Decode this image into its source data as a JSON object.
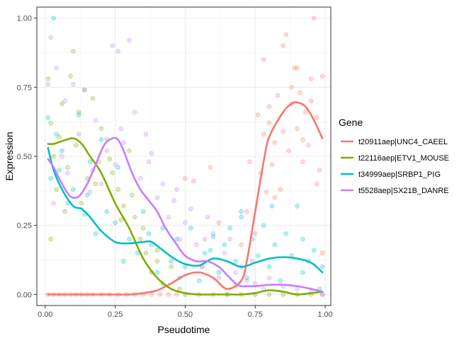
{
  "chart_data": {
    "type": "scatter",
    "title": "",
    "xlabel": "Pseudotime",
    "ylabel": "Expression",
    "xlim": [
      -0.03,
      1.02
    ],
    "ylim": [
      -0.04,
      1.04
    ],
    "x_ticks": [
      0.0,
      0.25,
      0.5,
      0.75,
      1.0
    ],
    "x_tick_labels": [
      "0.00",
      "0.25",
      "0.50",
      "0.75",
      "1.00"
    ],
    "y_ticks": [
      0.0,
      0.25,
      0.5,
      0.75,
      1.0
    ],
    "y_tick_labels": [
      "0.00",
      "0.25",
      "0.50",
      "0.75",
      "1.00"
    ],
    "grid": true,
    "legend": {
      "title": "Gene",
      "position": "right",
      "entries": [
        "t20911aep|UNC4_CAEEL",
        "t22116aep|ETV1_MOUSE",
        "t34999aep|SRBP1_PIG",
        "t5528aep|SX21B_DANRE"
      ]
    },
    "series": [
      {
        "name": "t20911aep|UNC4_CAEEL",
        "color": "#F8766D",
        "curve": {
          "x": [
            0.01,
            0.05,
            0.1,
            0.15,
            0.2,
            0.25,
            0.3,
            0.35,
            0.4,
            0.45,
            0.5,
            0.55,
            0.6,
            0.65,
            0.7,
            0.72,
            0.75,
            0.78,
            0.8,
            0.85,
            0.88,
            0.9,
            0.93,
            0.96,
            0.99
          ],
          "y": [
            0.0,
            0.0,
            0.0,
            0.0,
            0.0,
            0.0,
            0.0,
            0.005,
            0.015,
            0.04,
            0.07,
            0.08,
            0.06,
            0.02,
            0.05,
            0.12,
            0.3,
            0.48,
            0.57,
            0.66,
            0.69,
            0.695,
            0.68,
            0.63,
            0.565
          ]
        },
        "points": {
          "x": [
            0.01,
            0.03,
            0.05,
            0.07,
            0.09,
            0.11,
            0.13,
            0.15,
            0.17,
            0.2,
            0.23,
            0.26,
            0.29,
            0.32,
            0.35,
            0.38,
            0.41,
            0.44,
            0.47,
            0.5,
            0.53,
            0.56,
            0.59,
            0.62,
            0.65,
            0.68,
            0.7,
            0.72,
            0.73,
            0.74,
            0.76,
            0.77,
            0.78,
            0.79,
            0.8,
            0.81,
            0.82,
            0.83,
            0.84,
            0.85,
            0.86,
            0.87,
            0.88,
            0.89,
            0.9,
            0.91,
            0.92,
            0.93,
            0.94,
            0.95,
            0.96,
            0.97,
            0.98,
            0.99,
            0.75,
            0.8,
            0.85,
            0.9,
            0.95,
            0.99,
            0.97,
            0.92,
            0.88,
            0.82,
            0.78
          ],
          "y": [
            0.0,
            0.0,
            0.0,
            0.0,
            0.0,
            0.0,
            0.0,
            0.0,
            0.0,
            0.0,
            0.0,
            0.0,
            0.0,
            0.0,
            0.0,
            0.0,
            0.0,
            0.0,
            0.0,
            0.42,
            0.41,
            0.1,
            0.46,
            0.26,
            0.0,
            0.03,
            0.18,
            0.3,
            0.48,
            0.12,
            0.65,
            0.44,
            0.58,
            0.37,
            0.68,
            0.47,
            0.55,
            0.72,
            0.38,
            0.59,
            0.94,
            0.52,
            0.69,
            0.82,
            0.6,
            0.73,
            0.48,
            0.66,
            0.54,
            0.78,
            1.0,
            0.64,
            0.45,
            0.79,
            0.22,
            0.62,
            0.9,
            0.82,
            0.7,
            0.15,
            0.4,
            0.56,
            0.75,
            0.35,
            0.85
          ]
        }
      },
      {
        "name": "t22116aep|ETV1_MOUSE",
        "color": "#7CAE00",
        "curve": {
          "x": [
            0.01,
            0.03,
            0.06,
            0.1,
            0.13,
            0.16,
            0.2,
            0.25,
            0.3,
            0.35,
            0.4,
            0.45,
            0.5,
            0.55,
            0.6,
            0.65,
            0.7,
            0.75,
            0.8,
            0.85,
            0.9,
            0.95,
            0.99
          ],
          "y": [
            0.545,
            0.545,
            0.555,
            0.565,
            0.545,
            0.5,
            0.44,
            0.33,
            0.24,
            0.13,
            0.06,
            0.02,
            0.005,
            0.0,
            0.0,
            0.0,
            0.0,
            0.005,
            0.015,
            0.01,
            0.0,
            0.005,
            0.01
          ]
        },
        "points": {
          "x": [
            0.01,
            0.02,
            0.03,
            0.04,
            0.05,
            0.06,
            0.08,
            0.09,
            0.1,
            0.11,
            0.12,
            0.14,
            0.15,
            0.17,
            0.19,
            0.2,
            0.22,
            0.24,
            0.26,
            0.28,
            0.3,
            0.32,
            0.34,
            0.36,
            0.38,
            0.4,
            0.42,
            0.45,
            0.48,
            0.5,
            0.55,
            0.6,
            0.65,
            0.7,
            0.75,
            0.8,
            0.85,
            0.9,
            0.95,
            0.99,
            0.02,
            0.07,
            0.13,
            0.18,
            0.23,
            0.27,
            0.31,
            0.35,
            0.4
          ],
          "y": [
            0.78,
            0.62,
            0.5,
            0.38,
            0.57,
            0.69,
            0.46,
            0.79,
            0.88,
            0.54,
            0.66,
            0.74,
            0.42,
            0.71,
            0.48,
            0.6,
            0.56,
            0.44,
            0.38,
            0.32,
            0.52,
            0.28,
            0.2,
            0.15,
            0.08,
            0.12,
            0.04,
            0.1,
            0.02,
            0.0,
            0.0,
            0.0,
            0.0,
            0.0,
            0.0,
            0.0,
            0.0,
            0.0,
            0.0,
            0.0,
            0.2,
            0.3,
            0.33,
            0.4,
            0.49,
            0.27,
            0.36,
            0.24,
            0.16
          ]
        }
      },
      {
        "name": "t34999aep|SRBP1_PIG",
        "color": "#00BFC4",
        "curve": {
          "x": [
            0.01,
            0.03,
            0.06,
            0.1,
            0.13,
            0.16,
            0.2,
            0.25,
            0.3,
            0.35,
            0.38,
            0.42,
            0.46,
            0.5,
            0.55,
            0.6,
            0.65,
            0.7,
            0.75,
            0.8,
            0.85,
            0.9,
            0.95,
            0.99
          ],
          "y": [
            0.53,
            0.45,
            0.38,
            0.32,
            0.31,
            0.28,
            0.23,
            0.19,
            0.185,
            0.19,
            0.19,
            0.16,
            0.13,
            0.11,
            0.105,
            0.13,
            0.12,
            0.1,
            0.115,
            0.13,
            0.135,
            0.13,
            0.115,
            0.08
          ]
        },
        "points": {
          "x": [
            0.01,
            0.02,
            0.03,
            0.05,
            0.06,
            0.08,
            0.1,
            0.12,
            0.14,
            0.16,
            0.18,
            0.2,
            0.22,
            0.25,
            0.28,
            0.3,
            0.33,
            0.35,
            0.38,
            0.4,
            0.42,
            0.45,
            0.47,
            0.5,
            0.52,
            0.55,
            0.57,
            0.6,
            0.62,
            0.64,
            0.66,
            0.68,
            0.7,
            0.72,
            0.74,
            0.76,
            0.78,
            0.8,
            0.82,
            0.84,
            0.86,
            0.88,
            0.9,
            0.92,
            0.94,
            0.96,
            0.98,
            0.99,
            0.04,
            0.15,
            0.26,
            0.37,
            0.48,
            0.59,
            0.7,
            0.81,
            0.92
          ],
          "y": [
            0.64,
            0.42,
            1.0,
            0.45,
            0.52,
            0.33,
            0.38,
            0.65,
            0.29,
            0.48,
            0.22,
            0.56,
            0.3,
            0.26,
            0.12,
            0.2,
            0.15,
            0.3,
            0.18,
            0.08,
            0.24,
            0.12,
            0.2,
            0.1,
            0.24,
            0.05,
            0.15,
            0.21,
            0.08,
            0.18,
            0.24,
            0.12,
            0.3,
            0.06,
            0.2,
            0.14,
            0.25,
            0.1,
            0.18,
            0.05,
            0.22,
            0.14,
            0.32,
            0.08,
            0.12,
            0.16,
            0.02,
            0.1,
            0.58,
            0.36,
            0.46,
            0.22,
            0.06,
            0.16,
            0.28,
            0.32,
            0.2
          ]
        }
      },
      {
        "name": "t5528aep|SX21B_DANRE",
        "color": "#C77CFF",
        "curve": {
          "x": [
            0.01,
            0.03,
            0.06,
            0.09,
            0.12,
            0.15,
            0.18,
            0.21,
            0.24,
            0.26,
            0.28,
            0.31,
            0.34,
            0.37,
            0.4,
            0.43,
            0.47,
            0.5,
            0.54,
            0.58,
            0.62,
            0.65,
            0.68,
            0.7,
            0.72,
            0.75,
            0.8,
            0.85,
            0.9,
            0.95,
            0.99
          ],
          "y": [
            0.49,
            0.46,
            0.4,
            0.355,
            0.355,
            0.4,
            0.47,
            0.54,
            0.565,
            0.56,
            0.52,
            0.44,
            0.38,
            0.34,
            0.3,
            0.24,
            0.18,
            0.14,
            0.12,
            0.12,
            0.1,
            0.07,
            0.04,
            0.03,
            0.03,
            0.03,
            0.035,
            0.035,
            0.03,
            0.02,
            0.01
          ]
        },
        "points": {
          "x": [
            0.01,
            0.02,
            0.03,
            0.04,
            0.06,
            0.08,
            0.1,
            0.12,
            0.14,
            0.16,
            0.18,
            0.2,
            0.22,
            0.24,
            0.25,
            0.26,
            0.28,
            0.3,
            0.32,
            0.34,
            0.36,
            0.38,
            0.4,
            0.42,
            0.44,
            0.46,
            0.48,
            0.5,
            0.52,
            0.54,
            0.56,
            0.58,
            0.6,
            0.62,
            0.64,
            0.66,
            0.68,
            0.7,
            0.72,
            0.75,
            0.78,
            0.8,
            0.85,
            0.9,
            0.95,
            0.99,
            0.07,
            0.17,
            0.27,
            0.37,
            0.47,
            0.57
          ],
          "y": [
            0.76,
            0.93,
            0.33,
            0.82,
            0.5,
            0.44,
            0.76,
            0.58,
            0.74,
            0.37,
            0.63,
            0.4,
            0.52,
            0.9,
            0.47,
            0.88,
            0.55,
            0.92,
            0.66,
            0.42,
            0.58,
            0.51,
            0.35,
            0.4,
            0.28,
            0.34,
            0.2,
            0.26,
            0.31,
            0.18,
            0.1,
            0.28,
            0.22,
            0.06,
            0.15,
            0.2,
            0.08,
            0.1,
            0.05,
            0.04,
            0.02,
            0.06,
            0.03,
            0.02,
            0.01,
            0.0,
            0.7,
            0.45,
            0.6,
            0.48,
            0.38,
            0.2
          ]
        }
      }
    ]
  }
}
